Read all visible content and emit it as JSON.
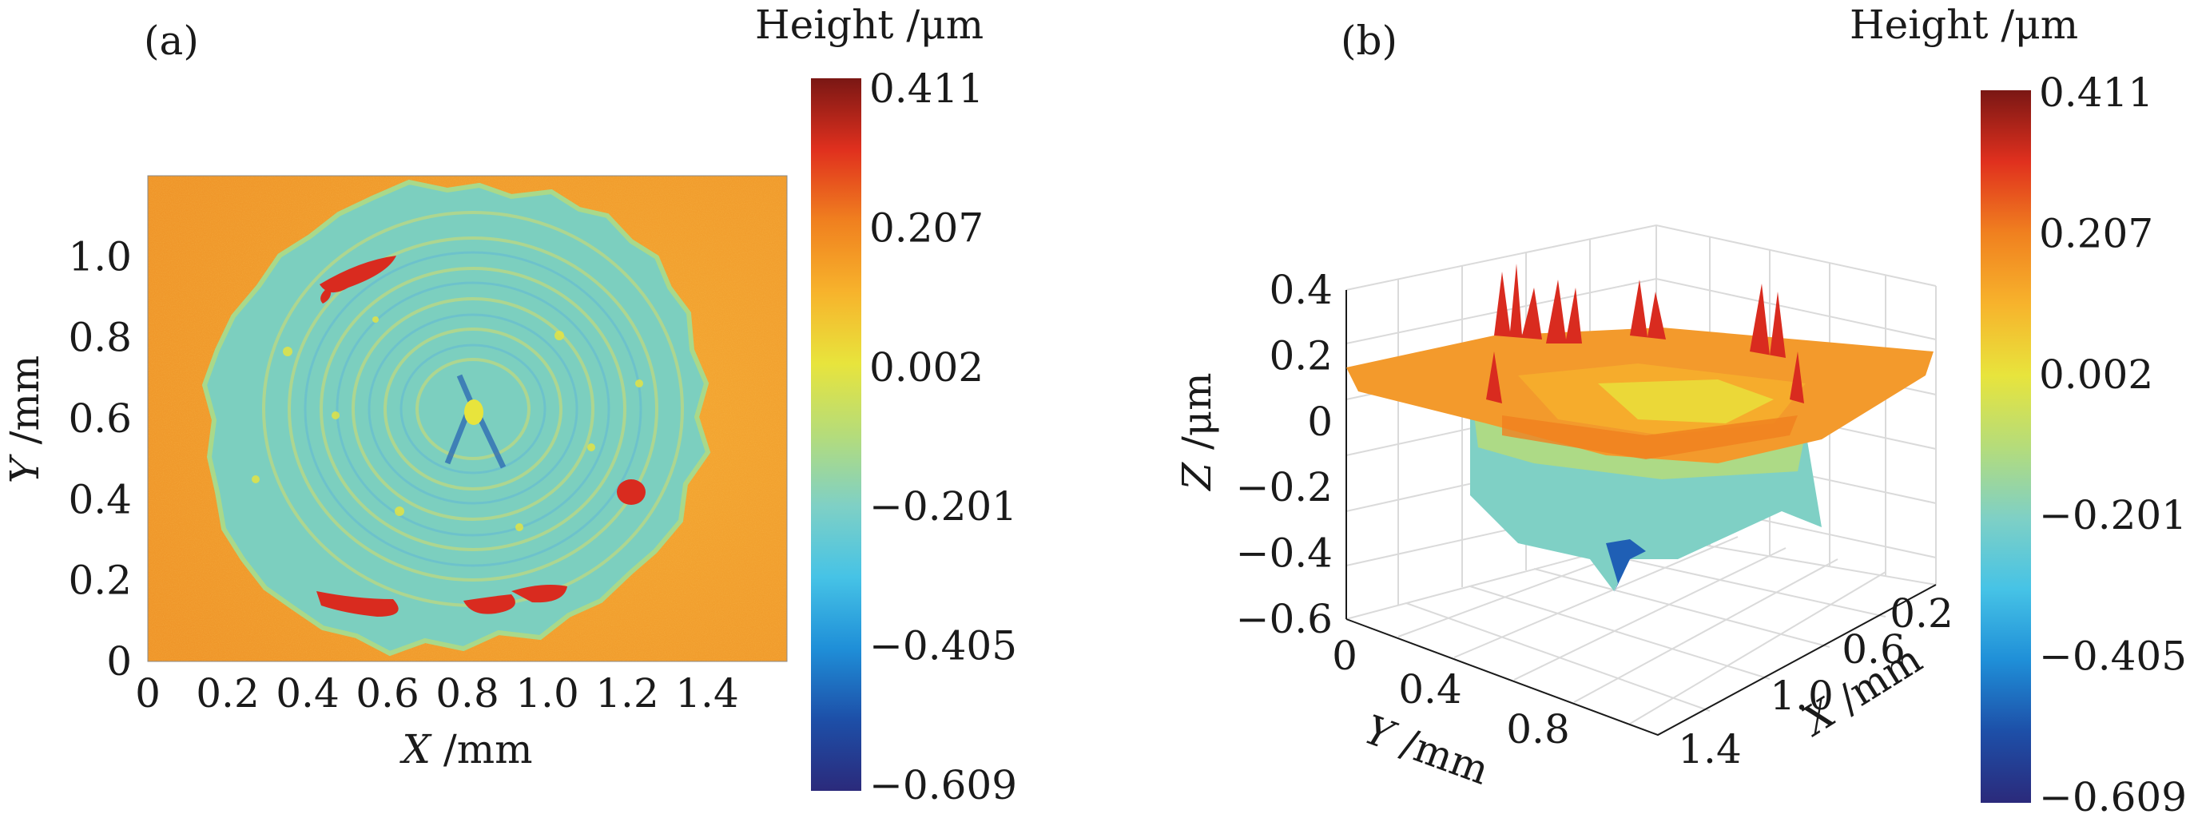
{
  "chart_data": [
    {
      "type": "heatmap",
      "panel_label": "(a)",
      "xlabel": "X /mm",
      "xlabel_var": "X",
      "xlabel_unit": " /mm",
      "ylabel": "Y /mm",
      "ylabel_var": "Y",
      "ylabel_unit": " /mm",
      "xlim": [
        0,
        1.6
      ],
      "ylim": [
        0,
        1.2
      ],
      "x_ticks": [
        "0",
        "0.2",
        "0.4",
        "0.6",
        "0.8",
        "1.0",
        "1.2",
        "1.4"
      ],
      "x_tick_values": [
        0,
        0.2,
        0.4,
        0.6,
        0.8,
        1.0,
        1.2,
        1.4
      ],
      "y_ticks": [
        "0",
        "0.2",
        "0.4",
        "0.6",
        "0.8",
        "1.0"
      ],
      "y_tick_values": [
        0,
        0.2,
        0.4,
        0.6,
        0.8,
        1.0
      ],
      "colorbar": {
        "title": "Height /μm",
        "ticks": [
          "0.411",
          "0.207",
          "0.002",
          "−0.201",
          "−0.405",
          "−0.609"
        ],
        "range": [
          -0.609,
          0.411
        ]
      },
      "surface": {
        "background_height": 0.15,
        "crater_center": [
          0.83,
          0.6
        ],
        "crater_radius": 0.56,
        "crater_floor_height": -0.2,
        "center_spot_height": 0.0,
        "high_rim_spots": [
          {
            "x": 0.55,
            "y": 0.95,
            "height": 0.38
          },
          {
            "x": 1.2,
            "y": 0.42,
            "height": 0.36
          },
          {
            "x": 0.85,
            "y": 0.13,
            "height": 0.37
          }
        ]
      }
    },
    {
      "type": "surface3d",
      "panel_label": "(b)",
      "xlabel": "X /mm",
      "xlabel_var": "X",
      "xlabel_unit": " /mm",
      "ylabel": "Y /mm",
      "ylabel_var": "Y",
      "ylabel_unit": " /mm",
      "zlabel": "Z /μm",
      "zlabel_var": "Z",
      "zlabel_unit": " /μm",
      "z_ticks": [
        "0.4",
        "0.2",
        "0",
        "−0.2",
        "−0.4",
        "−0.6"
      ],
      "z_tick_values": [
        0.4,
        0.2,
        0,
        -0.2,
        -0.4,
        -0.6
      ],
      "y_ticks": [
        "0",
        "0.4",
        "0.8"
      ],
      "x_ticks": [
        "0.2",
        "0.6",
        "1.0",
        "1.4"
      ],
      "zlim": [
        -0.6,
        0.4
      ],
      "colorbar": {
        "title": "Height /μm",
        "ticks": [
          "0.411",
          "0.207",
          "0.002",
          "−0.201",
          "−0.405",
          "−0.609"
        ],
        "range": [
          -0.609,
          0.411
        ]
      }
    }
  ],
  "colors": {
    "colormap": [
      "#2b2a7b",
      "#1d4fa8",
      "#1f8fd8",
      "#46c3e6",
      "#7fd0c5",
      "#b5dc7a",
      "#e8e43c",
      "#f7b32c",
      "#f0801f",
      "#e0301e",
      "#7a1714"
    ],
    "background_surface": "#f2a431",
    "crater_floor": "#7ccfbf"
  }
}
